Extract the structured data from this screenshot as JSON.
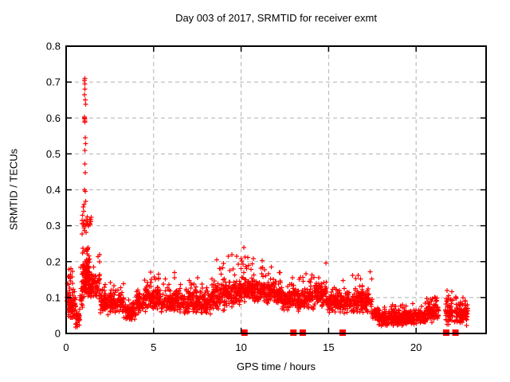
{
  "figure": {
    "background_color": "#ffffff",
    "title": "Day 003 of 2017, SRMTID for receiver exmt"
  },
  "chart_data": {
    "type": "scatter",
    "title": "Day 003 of 2017, SRMTID for receiver exmt",
    "xlabel": "GPS time / hours",
    "ylabel": "SRMTID / TECUs",
    "xlim": [
      0,
      24
    ],
    "ylim": [
      0,
      0.8
    ],
    "xtick_values": [
      0,
      5,
      10,
      15,
      20
    ],
    "xtick_labels": [
      "0",
      "5",
      "10",
      "15",
      "20"
    ],
    "ytick_values": [
      0,
      0.1,
      0.2,
      0.3,
      0.4,
      0.5,
      0.6,
      0.7,
      0.8
    ],
    "ytick_labels": [
      "0",
      "0.1",
      "0.2",
      "0.3",
      "0.4",
      "0.5",
      "0.6",
      "0.7",
      "0.8"
    ],
    "grid": true,
    "legend": "none",
    "marker": "plus",
    "marker_color": "#ff0000",
    "grid_color": "#b0b0b0",
    "axis_color": "#000000",
    "zero_marker": "filled-square",
    "zero_value_times": [
      10.19,
      12.99,
      13.52,
      15.8,
      21.72,
      22.25
    ],
    "peak_points": [
      [
        1.04,
        0.705
      ],
      [
        1.07,
        0.71
      ],
      [
        1.06,
        0.695
      ],
      [
        1.08,
        0.68
      ],
      [
        1.05,
        0.665
      ],
      [
        1.1,
        0.65
      ],
      [
        1.12,
        0.638
      ],
      [
        1.04,
        0.603
      ],
      [
        1.05,
        0.6
      ],
      [
        1.06,
        0.597
      ],
      [
        1.07,
        0.592
      ],
      [
        1.08,
        0.588
      ],
      [
        1.09,
        0.545
      ],
      [
        1.11,
        0.528
      ],
      [
        1.07,
        0.51
      ],
      [
        1.08,
        0.472
      ],
      [
        1.1,
        0.448
      ],
      [
        1.05,
        0.4
      ],
      [
        1.09,
        0.396
      ],
      [
        1.12,
        0.368
      ],
      [
        1.02,
        0.359
      ],
      [
        0.97,
        0.352
      ],
      [
        1.0,
        0.34
      ]
    ],
    "cloud_segments": [
      {
        "t0": 0.05,
        "t1": 0.55,
        "vmin": 0.04,
        "vmax": 0.12,
        "per_hour": 150,
        "spike_max": 0.13,
        "spike_prob": 0.05
      },
      {
        "t0": 0.05,
        "t1": 0.4,
        "vmin": 0.12,
        "vmax": 0.2,
        "per_hour": 40,
        "spike_max": 0,
        "spike_prob": 0
      },
      {
        "t0": 0.55,
        "t1": 0.78,
        "vmin": 0.015,
        "vmax": 0.075,
        "per_hour": 120,
        "spike_max": 0,
        "spike_prob": 0
      },
      {
        "t0": 0.78,
        "t1": 0.95,
        "vmin": 0.06,
        "vmax": 0.16,
        "per_hour": 130,
        "spike_max": 0.19,
        "spike_prob": 0.1
      },
      {
        "t0": 0.95,
        "t1": 1.35,
        "vmin": 0.1,
        "vmax": 0.22,
        "per_hour": 250,
        "spike_max": 0,
        "spike_prob": 0
      },
      {
        "t0": 0.9,
        "t1": 1.45,
        "vmin": 0.27,
        "vmax": 0.335,
        "per_hour": 50,
        "spike_max": 0,
        "spike_prob": 0
      },
      {
        "t0": 0.9,
        "t1": 1.3,
        "vmin": 0.215,
        "vmax": 0.245,
        "per_hour": 22,
        "spike_max": 0,
        "spike_prob": 0
      },
      {
        "t0": 1.35,
        "t1": 1.95,
        "vmin": 0.09,
        "vmax": 0.18,
        "per_hour": 150,
        "spike_max": 0.22,
        "spike_prob": 0.06
      },
      {
        "t0": 1.95,
        "t1": 3.3,
        "vmin": 0.05,
        "vmax": 0.125,
        "per_hour": 120,
        "spike_max": 0.145,
        "spike_prob": 0.05
      },
      {
        "t0": 3.3,
        "t1": 4.0,
        "vmin": 0.03,
        "vmax": 0.095,
        "per_hour": 110,
        "spike_max": 0,
        "spike_prob": 0
      },
      {
        "t0": 4.0,
        "t1": 4.55,
        "vmin": 0.05,
        "vmax": 0.13,
        "per_hour": 120,
        "spike_max": 0.165,
        "spike_prob": 0.07
      },
      {
        "t0": 4.55,
        "t1": 5.4,
        "vmin": 0.06,
        "vmax": 0.14,
        "per_hour": 120,
        "spike_max": 0.175,
        "spike_prob": 0.06
      },
      {
        "t0": 5.4,
        "t1": 8.3,
        "vmin": 0.05,
        "vmax": 0.125,
        "per_hour": 115,
        "spike_max": 0.17,
        "spike_prob": 0.04
      },
      {
        "t0": 8.3,
        "t1": 9.2,
        "vmin": 0.06,
        "vmax": 0.15,
        "per_hour": 130,
        "spike_max": 0.21,
        "spike_prob": 0.07
      },
      {
        "t0": 9.2,
        "t1": 10.05,
        "vmin": 0.07,
        "vmax": 0.155,
        "per_hour": 130,
        "spike_max": 0.225,
        "spike_prob": 0.07
      },
      {
        "t0": 10.05,
        "t1": 10.75,
        "vmin": 0.08,
        "vmax": 0.165,
        "per_hour": 135,
        "spike_max": 0.24,
        "spike_prob": 0.08
      },
      {
        "t0": 10.75,
        "t1": 12.3,
        "vmin": 0.08,
        "vmax": 0.155,
        "per_hour": 130,
        "spike_max": 0.21,
        "spike_prob": 0.06
      },
      {
        "t0": 12.3,
        "t1": 13.35,
        "vmin": 0.06,
        "vmax": 0.13,
        "per_hour": 120,
        "spike_max": 0.16,
        "spike_prob": 0.05
      },
      {
        "t0": 13.35,
        "t1": 14.2,
        "vmin": 0.06,
        "vmax": 0.135,
        "per_hour": 120,
        "spike_max": 0.185,
        "spike_prob": 0.06
      },
      {
        "t0": 14.2,
        "t1": 14.9,
        "vmin": 0.07,
        "vmax": 0.15,
        "per_hour": 125,
        "spike_max": 0.22,
        "spike_prob": 0.07
      },
      {
        "t0": 14.9,
        "t1": 16.3,
        "vmin": 0.05,
        "vmax": 0.12,
        "per_hour": 115,
        "spike_max": 0.15,
        "spike_prob": 0.05
      },
      {
        "t0": 16.3,
        "t1": 17.5,
        "vmin": 0.05,
        "vmax": 0.13,
        "per_hour": 115,
        "spike_max": 0.175,
        "spike_prob": 0.07
      },
      {
        "t0": 17.5,
        "t1": 17.85,
        "vmin": 0.03,
        "vmax": 0.08,
        "per_hour": 110,
        "spike_max": 0,
        "spike_prob": 0
      },
      {
        "t0": 17.85,
        "t1": 19.2,
        "vmin": 0.018,
        "vmax": 0.065,
        "per_hour": 140,
        "spike_max": 0.08,
        "spike_prob": 0.05
      },
      {
        "t0": 19.2,
        "t1": 20.6,
        "vmin": 0.022,
        "vmax": 0.07,
        "per_hour": 130,
        "spike_max": 0.085,
        "spike_prob": 0.05
      },
      {
        "t0": 20.6,
        "t1": 21.3,
        "vmin": 0.03,
        "vmax": 0.095,
        "per_hour": 130,
        "spike_max": 0.11,
        "spike_prob": 0.06
      },
      {
        "t0": 21.65,
        "t1": 22.1,
        "vmin": 0.02,
        "vmax": 0.105,
        "per_hour": 140,
        "spike_max": 0.12,
        "spike_prob": 0.06
      },
      {
        "t0": 22.2,
        "t1": 22.95,
        "vmin": 0.02,
        "vmax": 0.095,
        "per_hour": 140,
        "spike_max": 0.11,
        "spike_prob": 0.06
      }
    ]
  }
}
